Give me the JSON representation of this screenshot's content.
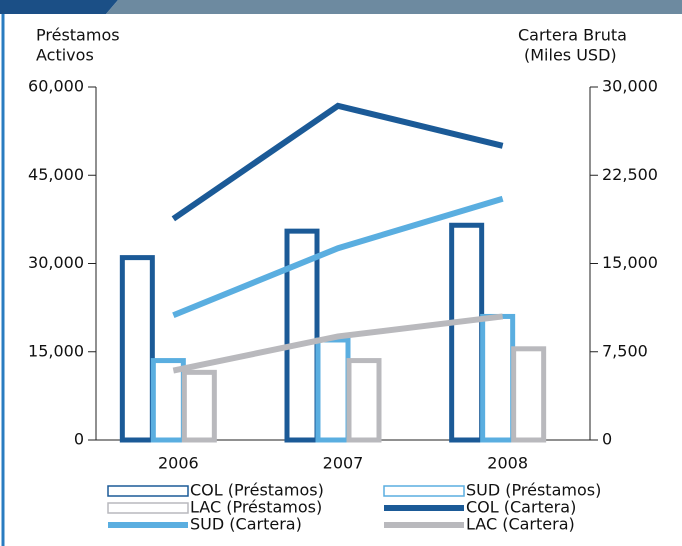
{
  "chart_data": {
    "type": "combo",
    "ylabel": [
      "Préstamos",
      "Activos"
    ],
    "y2label": [
      "Cartera Bruta",
      "(Miles USD)"
    ],
    "categories": [
      "2006",
      "2007",
      "2008"
    ],
    "ylim": [
      0,
      60000
    ],
    "yticks": [
      0,
      {
        "value": 15000,
        "label": "15,000"
      },
      {
        "value": 30000,
        "label": "30,000"
      },
      {
        "value": 45000,
        "label": "45,000"
      },
      {
        "value": 60000,
        "label": "60,000"
      }
    ],
    "y2lim": [
      0,
      30000
    ],
    "y2ticks": [
      0,
      {
        "value": 7500,
        "label": "7,500"
      },
      {
        "value": 15000,
        "label": "15,000"
      },
      {
        "value": 22500,
        "label": "22,500"
      },
      {
        "value": 30000,
        "label": "30,000"
      }
    ],
    "series": [
      {
        "name": "COL (Préstamos)",
        "type": "bar",
        "color": "#1b5a97",
        "values": [
          31000,
          35500,
          36500
        ]
      },
      {
        "name": "SUD (Préstamos)",
        "type": "bar",
        "color": "#5aaee0",
        "values": [
          13500,
          17000,
          21000
        ]
      },
      {
        "name": "LAC (Préstamos)",
        "type": "bar",
        "color": "#b9b9bd",
        "values": [
          11500,
          13500,
          15500
        ]
      },
      {
        "name": "COL (Cartera)",
        "type": "line",
        "axis": "y2",
        "color": "#1b5a97",
        "values": [
          18800,
          28400,
          25000
        ]
      },
      {
        "name": "SUD (Cartera)",
        "type": "line",
        "axis": "y2",
        "color": "#5aaee0",
        "values": [
          10600,
          16300,
          20500
        ]
      },
      {
        "name": "LAC (Cartera)",
        "type": "line",
        "axis": "y2",
        "color": "#b9b9bd",
        "values": [
          5900,
          8800,
          10500
        ]
      }
    ]
  }
}
